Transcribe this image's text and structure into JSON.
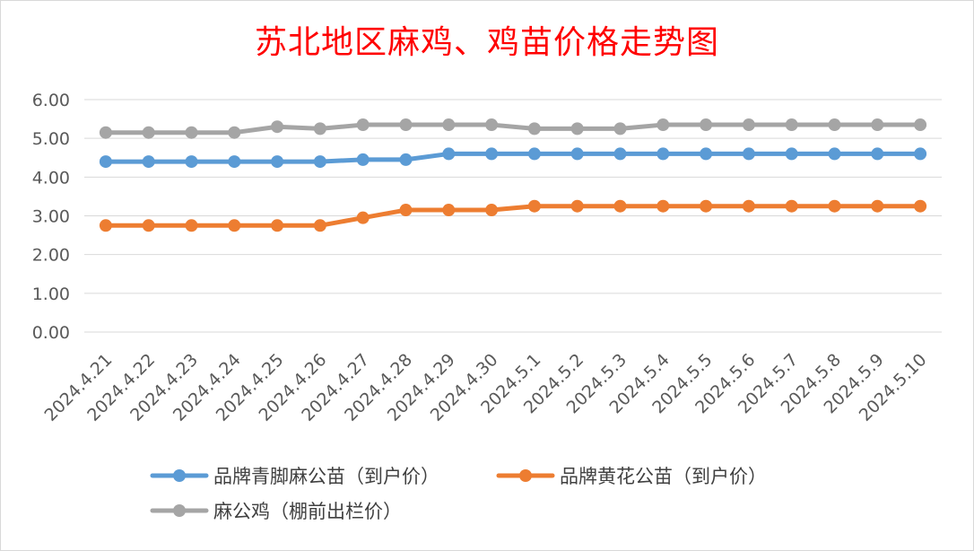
{
  "chart_data": {
    "type": "line",
    "title": "苏北地区麻鸡、鸡苗价格走势图",
    "xlabel": "",
    "ylabel": "",
    "ylim": [
      0,
      6
    ],
    "yticks": [
      "0.00",
      "1.00",
      "2.00",
      "3.00",
      "4.00",
      "5.00",
      "6.00"
    ],
    "grid": true,
    "legend_position": "bottom",
    "categories": [
      "2024.4.21",
      "2024.4.22",
      "2024.4.23",
      "2024.4.24",
      "2024.4.25",
      "2024.4.26",
      "2024.4.27",
      "2024.4.28",
      "2024.4.29",
      "2024.4.30",
      "2024.5.1",
      "2024.5.2",
      "2024.5.3",
      "2024.5.4",
      "2024.5.5",
      "2024.5.6",
      "2024.5.7",
      "2024.5.8",
      "2024.5.9",
      "2024.5.10"
    ],
    "series": [
      {
        "name": "品牌青脚麻公苗（到户价）",
        "color": "#5b9bd5",
        "values": [
          4.4,
          4.4,
          4.4,
          4.4,
          4.4,
          4.4,
          4.45,
          4.45,
          4.6,
          4.6,
          4.6,
          4.6,
          4.6,
          4.6,
          4.6,
          4.6,
          4.6,
          4.6,
          4.6,
          4.6
        ]
      },
      {
        "name": "品牌黄花公苗（到户价）",
        "color": "#ed7d31",
        "values": [
          2.75,
          2.75,
          2.75,
          2.75,
          2.75,
          2.75,
          2.95,
          3.15,
          3.15,
          3.15,
          3.25,
          3.25,
          3.25,
          3.25,
          3.25,
          3.25,
          3.25,
          3.25,
          3.25,
          3.25
        ]
      },
      {
        "name": "麻公鸡（棚前出栏价）",
        "color": "#a5a5a5",
        "values": [
          5.15,
          5.15,
          5.15,
          5.15,
          5.3,
          5.25,
          5.35,
          5.35,
          5.35,
          5.35,
          5.25,
          5.25,
          5.25,
          5.35,
          5.35,
          5.35,
          5.35,
          5.35,
          5.35,
          5.35
        ]
      }
    ]
  }
}
